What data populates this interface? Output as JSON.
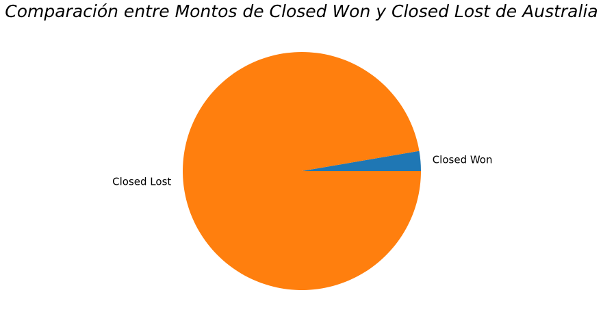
{
  "chart_data": {
    "type": "pie",
    "title": "Comparación entre Montos de Closed Won y Closed Lost de Australia",
    "categories": [
      "Closed Won",
      "Closed Lost"
    ],
    "values": [
      2.7,
      97.3
    ],
    "colors": [
      "#1f77b4",
      "#ff7f0e"
    ],
    "start_angle_deg": 0,
    "direction": "counterclockwise",
    "legend": "none"
  }
}
